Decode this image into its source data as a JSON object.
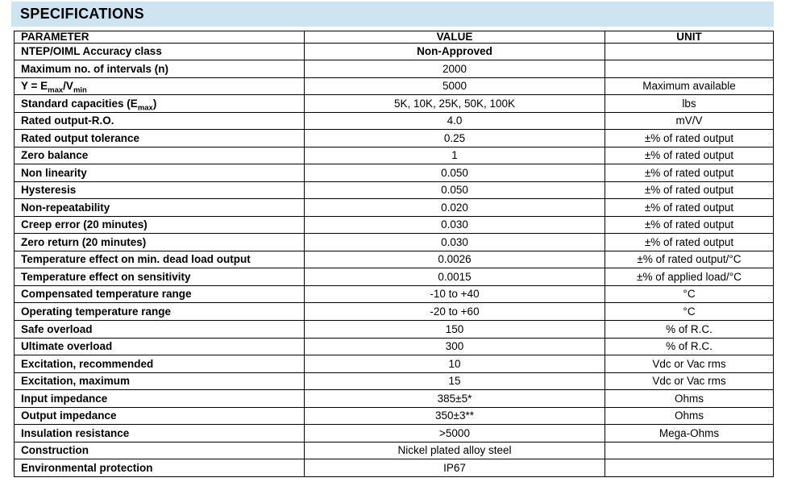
{
  "page": {
    "title": "SPECIFICATIONS"
  },
  "colors": {
    "title_bar_bg": "#cee4f1",
    "table_border": "#000000",
    "text": "#000000",
    "page_bg": "#ffffff"
  },
  "table": {
    "columns": [
      {
        "label": "PARAMETER",
        "align": "left"
      },
      {
        "label": "VALUE",
        "align": "center"
      },
      {
        "label": "UNIT",
        "align": "center"
      }
    ],
    "rows": [
      {
        "parameter": "NTEP/OIML Accuracy class",
        "value": "Non-Approved",
        "unit": "",
        "value_bold": true
      },
      {
        "parameter": "Maximum no. of intervals (n)",
        "value": "2000",
        "unit": "",
        "value_bold": false
      },
      {
        "parameter": "Y = E_{max}/V_{min}",
        "value": "5000",
        "unit": "Maximum available",
        "value_bold": false
      },
      {
        "parameter": "Standard capacities (E_{max})",
        "value": "5K, 10K, 25K, 50K, 100K",
        "unit": "lbs",
        "value_bold": false
      },
      {
        "parameter": "Rated output-R.O.",
        "value": "4.0",
        "unit": "mV/V",
        "value_bold": false
      },
      {
        "parameter": "Rated output tolerance",
        "value": "0.25",
        "unit": "±% of rated output",
        "value_bold": false
      },
      {
        "parameter": "Zero balance",
        "value": "1",
        "unit": "±% of rated output",
        "value_bold": false
      },
      {
        "parameter": "Non linearity",
        "value": "0.050",
        "unit": "±% of rated output",
        "value_bold": false
      },
      {
        "parameter": "Hysteresis",
        "value": "0.050",
        "unit": "±% of rated output",
        "value_bold": false
      },
      {
        "parameter": "Non-repeatability",
        "value": "0.020",
        "unit": "±% of rated output",
        "value_bold": false
      },
      {
        "parameter": "Creep error (20 minutes)",
        "value": "0.030",
        "unit": "±% of rated output",
        "value_bold": false
      },
      {
        "parameter": "Zero return (20 minutes)",
        "value": "0.030",
        "unit": "±% of rated output",
        "value_bold": false
      },
      {
        "parameter": "Temperature effect on min. dead load output",
        "value": "0.0026",
        "unit": "±% of rated output/°C",
        "value_bold": false
      },
      {
        "parameter": "Temperature effect on sensitivity",
        "value": "0.0015",
        "unit": "±% of applied load/°C",
        "value_bold": false
      },
      {
        "parameter": "Compensated temperature range",
        "value": "-10 to +40",
        "unit": "°C",
        "value_bold": false
      },
      {
        "parameter": "Operating temperature range",
        "value": "-20 to +60",
        "unit": "°C",
        "value_bold": false
      },
      {
        "parameter": "Safe overload",
        "value": "150",
        "unit": "% of R.C.",
        "value_bold": false
      },
      {
        "parameter": "Ultimate overload",
        "value": "300",
        "unit": "% of R.C.",
        "value_bold": false
      },
      {
        "parameter": "Excitation, recommended",
        "value": "10",
        "unit": "Vdc or Vac rms",
        "value_bold": false
      },
      {
        "parameter": "Excitation, maximum",
        "value": "15",
        "unit": "Vdc or Vac rms",
        "value_bold": false
      },
      {
        "parameter": "Input impedance",
        "value": "385±5*",
        "unit": "Ohms",
        "value_bold": false
      },
      {
        "parameter": "Output impedance",
        "value": "350±3**",
        "unit": "Ohms",
        "value_bold": false
      },
      {
        "parameter": "Insulation resistance",
        "value": ">5000",
        "unit": "Mega-Ohms",
        "value_bold": false
      },
      {
        "parameter": "Construction",
        "value": "Nickel plated alloy steel",
        "unit": "",
        "value_bold": false
      },
      {
        "parameter": "Environmental protection",
        "value": "IP67",
        "unit": "",
        "value_bold": false
      }
    ]
  }
}
